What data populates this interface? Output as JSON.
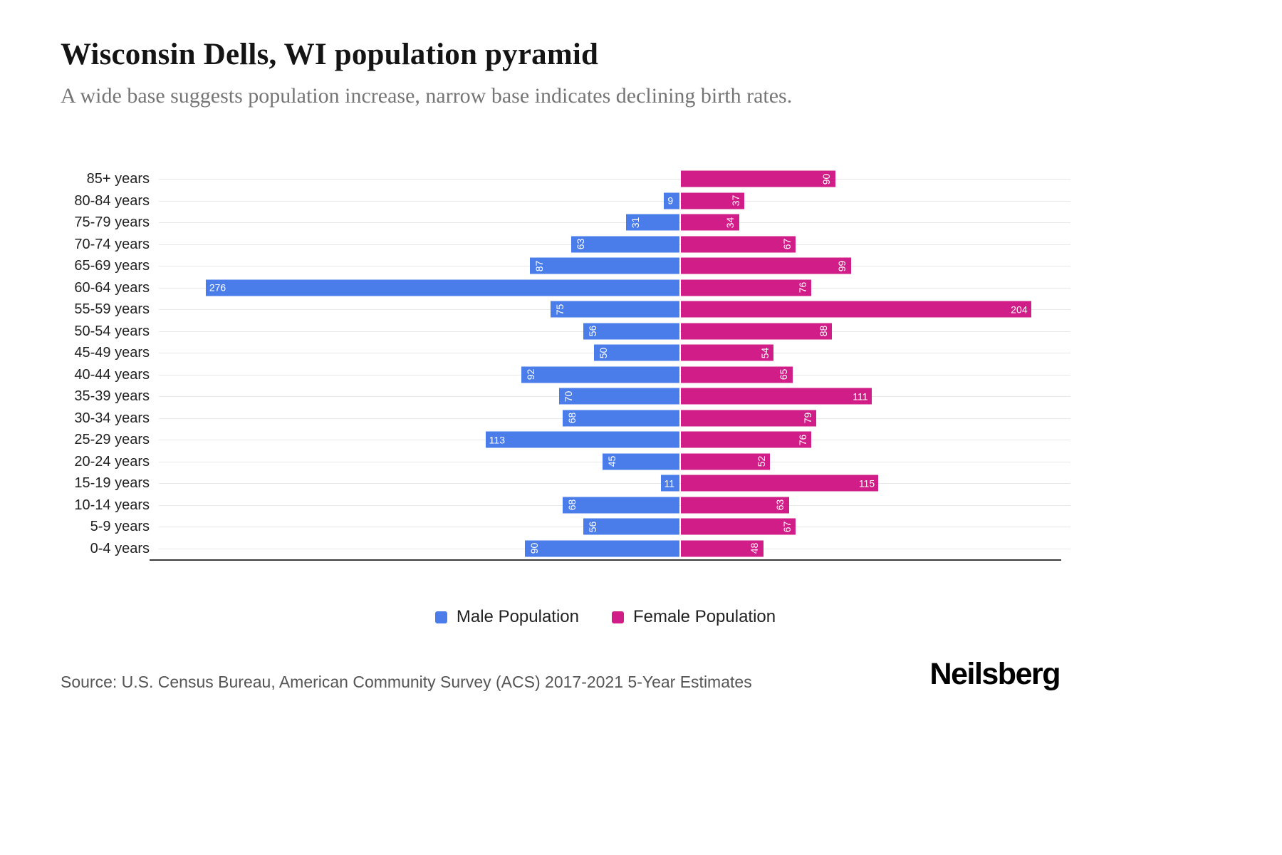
{
  "header": {
    "title": "Wisconsin Dells, WI population pyramid",
    "subtitle": "A wide base suggests population increase, narrow base indicates declining birth rates."
  },
  "chart_data": {
    "type": "bar",
    "variant": "population-pyramid",
    "orientation": "horizontal",
    "categories": [
      "85+ years",
      "80-84 years",
      "75-79 years",
      "70-74 years",
      "65-69 years",
      "60-64 years",
      "55-59 years",
      "50-54 years",
      "45-49 years",
      "40-44 years",
      "35-39 years",
      "30-34 years",
      "25-29 years",
      "20-24 years",
      "15-19 years",
      "10-14 years",
      "5-9 years",
      "0-4 years"
    ],
    "series": [
      {
        "name": "Male Population",
        "color": "#4a7de9",
        "direction": "left",
        "values": [
          0,
          9,
          31,
          63,
          87,
          276,
          75,
          56,
          50,
          92,
          70,
          68,
          113,
          45,
          11,
          68,
          56,
          90
        ]
      },
      {
        "name": "Female Population",
        "color": "#d01d87",
        "direction": "right",
        "values": [
          90,
          37,
          34,
          67,
          99,
          76,
          204,
          88,
          54,
          65,
          111,
          79,
          76,
          52,
          115,
          63,
          67,
          48
        ]
      }
    ],
    "value_labels": "inside-bar-end",
    "legend_position": "bottom",
    "grid": true
  },
  "footer": {
    "source": "Source: U.S. Census Bureau, American Community Survey (ACS) 2017-2021 5-Year Estimates",
    "brand": "Neilsberg"
  },
  "colors": {
    "male": "#4a7de9",
    "female": "#d01d87",
    "title": "#141414",
    "subtitle": "#757575",
    "gridline": "#e8e8e8"
  }
}
